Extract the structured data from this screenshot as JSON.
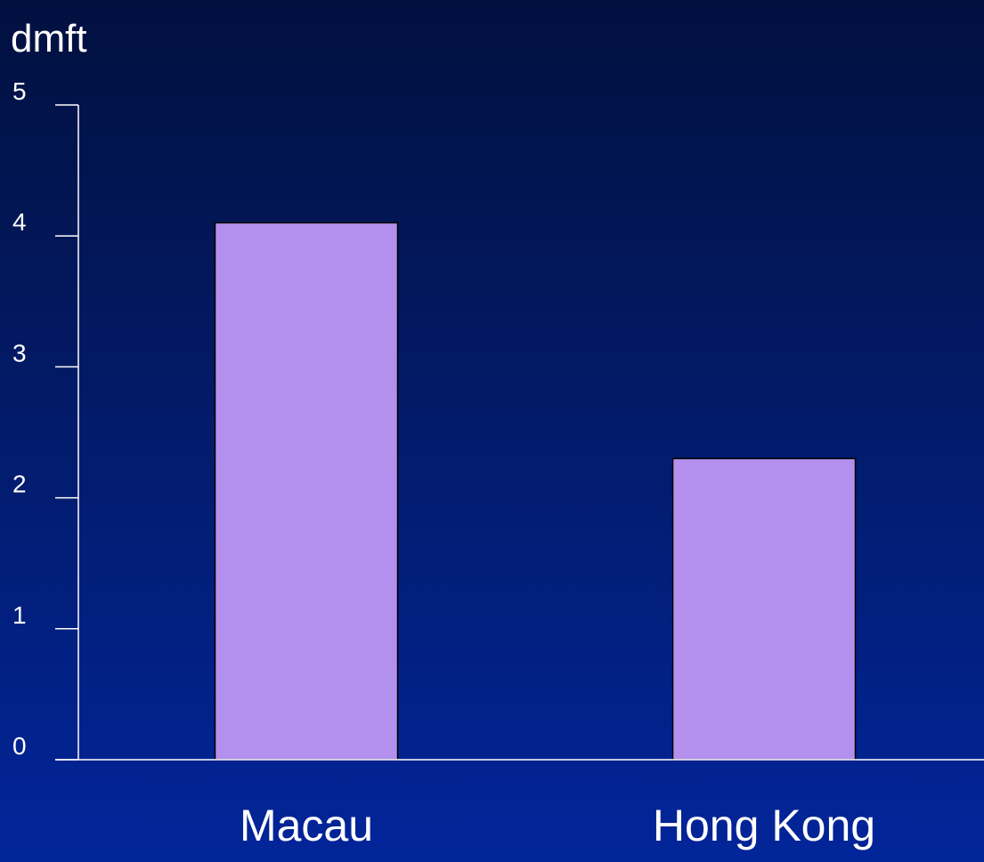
{
  "chart_data": {
    "type": "bar",
    "title": "",
    "xlabel": "",
    "ylabel": "dmft",
    "categories": [
      "Macau",
      "Hong Kong"
    ],
    "values": [
      4.1,
      2.3
    ],
    "ylim": [
      0,
      5
    ],
    "yticks": [
      "0",
      "1",
      "2",
      "3",
      "4",
      "5"
    ],
    "grid": false,
    "legend": "none",
    "colors": {
      "bar": "#b38fee",
      "bar_outline": "#000000",
      "axis": "#ffffff",
      "background_top": "#01103f",
      "background_bottom": "#02259a"
    }
  }
}
